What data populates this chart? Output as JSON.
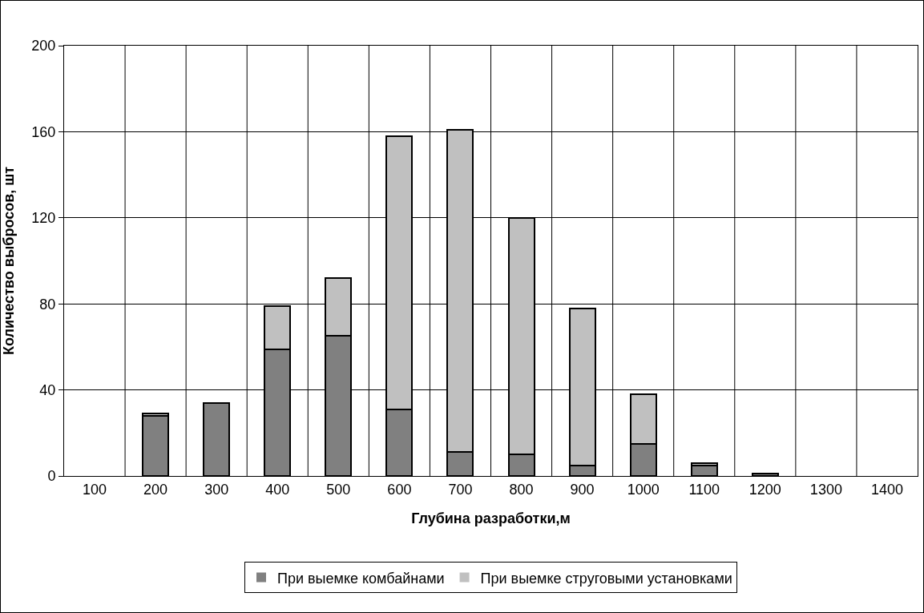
{
  "chart_data": {
    "type": "bar",
    "stacked": true,
    "xlabel": "Глубина разработки,м",
    "ylabel": "Количество выбросов, шт",
    "categories": [
      "100",
      "200",
      "300",
      "400",
      "500",
      "600",
      "700",
      "800",
      "900",
      "1000",
      "1100",
      "1200",
      "1300",
      "1400"
    ],
    "series": [
      {
        "name": "При выемке комбайнами",
        "color": "#808080",
        "values": [
          0,
          28,
          34,
          59,
          65,
          31,
          11,
          10,
          5,
          15,
          5,
          1,
          0,
          0
        ]
      },
      {
        "name": "При выемке струговыми установками",
        "color": "#c0c0c0",
        "values": [
          0,
          1,
          0,
          20,
          27,
          127,
          150,
          110,
          73,
          23,
          1,
          0,
          0,
          0
        ]
      }
    ],
    "ylim": [
      0,
      200
    ],
    "yticks": [
      0,
      40,
      80,
      120,
      160,
      200
    ],
    "grid": true,
    "legend": "bottom"
  }
}
